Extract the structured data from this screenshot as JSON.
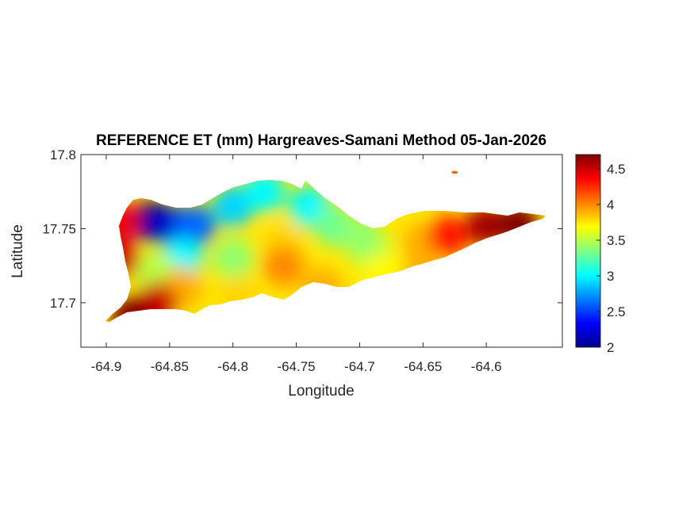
{
  "chart_data": {
    "type": "heatmap",
    "title": "REFERENCE ET (mm) Hargreaves-Samani Method  05-Jan-2026",
    "xlabel": "Longitude",
    "ylabel": "Latitude",
    "xlim": [
      -64.92,
      -64.54
    ],
    "ylim": [
      17.67,
      17.8
    ],
    "x_ticks": [
      -64.9,
      -64.85,
      -64.8,
      -64.75,
      -64.7,
      -64.65,
      -64.6
    ],
    "x_tick_labels": [
      "-64.9",
      "-64.85",
      "-64.8",
      "-64.75",
      "-64.7",
      "-64.65",
      "-64.6"
    ],
    "y_ticks": [
      17.7,
      17.75,
      17.8
    ],
    "y_tick_labels": [
      "17.7",
      "17.75",
      "17.8"
    ],
    "colorbar": {
      "colormap": "jet",
      "range": [
        2,
        4.7
      ],
      "ticks": [
        2,
        2.5,
        3,
        3.5,
        4,
        4.5
      ],
      "tick_labels": [
        "2",
        "2.5",
        "3",
        "3.5",
        "4",
        "4.5"
      ]
    },
    "field": {
      "description_values": "approximate ET (mm) at sample locations",
      "points": [
        {
          "lon": -64.865,
          "lat": 17.755,
          "value": 2.0
        },
        {
          "lon": -64.85,
          "lat": 17.752,
          "value": 2.2
        },
        {
          "lon": -64.83,
          "lat": 17.752,
          "value": 2.6
        },
        {
          "lon": -64.8,
          "lat": 17.765,
          "value": 2.9
        },
        {
          "lon": -64.775,
          "lat": 17.775,
          "value": 3.0
        },
        {
          "lon": -64.74,
          "lat": 17.765,
          "value": 3.0
        },
        {
          "lon": -64.72,
          "lat": 17.752,
          "value": 3.3
        },
        {
          "lon": -64.76,
          "lat": 17.74,
          "value": 3.8
        },
        {
          "lon": -64.76,
          "lat": 17.725,
          "value": 4.0
        },
        {
          "lon": -64.8,
          "lat": 17.73,
          "value": 3.4
        },
        {
          "lon": -64.84,
          "lat": 17.73,
          "value": 3.0
        },
        {
          "lon": -64.86,
          "lat": 17.72,
          "value": 3.5
        },
        {
          "lon": -64.84,
          "lat": 17.71,
          "value": 3.9
        },
        {
          "lon": -64.86,
          "lat": 17.7,
          "value": 4.5
        },
        {
          "lon": -64.88,
          "lat": 17.69,
          "value": 4.7
        },
        {
          "lon": -64.89,
          "lat": 17.73,
          "value": 4.5
        },
        {
          "lon": -64.89,
          "lat": 17.755,
          "value": 4.4
        },
        {
          "lon": -64.795,
          "lat": 17.705,
          "value": 3.8
        },
        {
          "lon": -64.73,
          "lat": 17.71,
          "value": 3.9
        },
        {
          "lon": -64.69,
          "lat": 17.735,
          "value": 3.5
        },
        {
          "lon": -64.68,
          "lat": 17.72,
          "value": 3.7
        },
        {
          "lon": -64.65,
          "lat": 17.74,
          "value": 3.9
        },
        {
          "lon": -64.63,
          "lat": 17.745,
          "value": 4.3
        },
        {
          "lon": -64.6,
          "lat": 17.752,
          "value": 4.6
        },
        {
          "lon": -64.575,
          "lat": 17.753,
          "value": 4.7
        },
        {
          "lon": -64.65,
          "lat": 17.72,
          "value": 3.9
        },
        {
          "lon": -64.7,
          "lat": 17.745,
          "value": 3.4
        }
      ]
    },
    "islet": {
      "lon": -64.625,
      "lat": 17.788,
      "value": 4.1
    },
    "grid": false,
    "colorbar_position": "right"
  }
}
